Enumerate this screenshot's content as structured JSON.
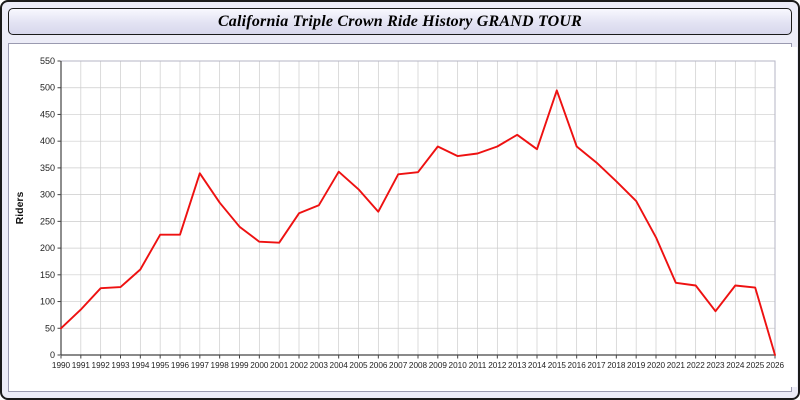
{
  "title": "California Triple Crown Ride History GRAND TOUR",
  "chart_data": {
    "type": "line",
    "title": "California Triple Crown Ride History GRAND TOUR",
    "xlabel": "",
    "ylabel": "Riders",
    "ylim": [
      0,
      550
    ],
    "ytick_step": 50,
    "grid": true,
    "legend": "none",
    "line_color": "#ee1111",
    "grid_color": "#cccccc",
    "axis_color": "#444444",
    "tick_label_color": "#222222",
    "x": [
      1990,
      1991,
      1992,
      1993,
      1994,
      1995,
      1996,
      1997,
      1998,
      1999,
      2000,
      2001,
      2002,
      2003,
      2004,
      2005,
      2006,
      2007,
      2008,
      2009,
      2010,
      2011,
      2012,
      2013,
      2014,
      2015,
      2016,
      2017,
      2018,
      2019,
      2020,
      2021,
      2022,
      2023,
      2024,
      2025,
      2026
    ],
    "values": [
      50,
      85,
      125,
      127,
      160,
      225,
      225,
      340,
      285,
      240,
      212,
      210,
      265,
      280,
      343,
      310,
      268,
      338,
      342,
      390,
      372,
      377,
      390,
      412,
      385,
      495,
      390,
      360,
      325,
      288,
      220,
      135,
      130,
      82,
      130,
      126,
      0
    ]
  }
}
